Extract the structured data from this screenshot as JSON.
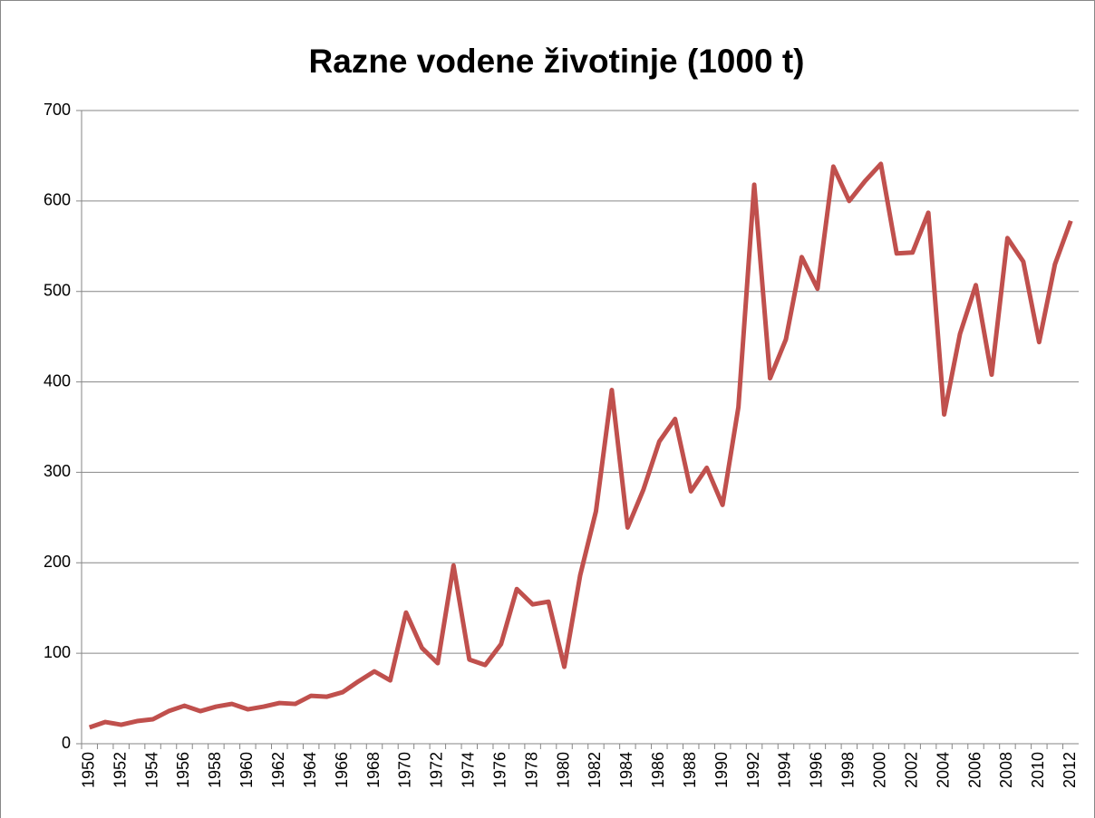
{
  "chart_data": {
    "type": "line",
    "title": "Razne vodene životinje (1000 t)",
    "categories": [
      "1950",
      null,
      "1952",
      null,
      "1954",
      null,
      "1956",
      null,
      "1958",
      null,
      "1960",
      null,
      "1962",
      null,
      "1964",
      null,
      "1966",
      null,
      "1968",
      null,
      "1970",
      null,
      "1972",
      null,
      "1974",
      null,
      "1976",
      null,
      "1978",
      null,
      "1980",
      null,
      "1982",
      null,
      "1984",
      null,
      "1986",
      null,
      "1988",
      null,
      "1990",
      null,
      "1992",
      null,
      "1994",
      null,
      "1996",
      null,
      "1998",
      null,
      "2000",
      null,
      "2002",
      null,
      "2004",
      null,
      "2006",
      null,
      "2008",
      null,
      "2010",
      null,
      "2012"
    ],
    "series": [
      {
        "name": "Razne vodene životinje",
        "color": "#c0504d",
        "values": [
          18,
          24,
          21,
          25,
          27,
          36,
          42,
          36,
          41,
          44,
          38,
          41,
          45,
          44,
          53,
          52,
          57,
          69,
          80,
          70,
          145,
          106,
          89,
          197,
          93,
          87,
          110,
          171,
          154,
          157,
          85,
          186,
          257,
          391,
          239,
          281,
          334,
          359,
          279,
          305,
          264,
          372,
          618,
          404,
          447,
          538,
          503,
          638,
          600,
          622,
          641,
          542,
          543,
          587,
          364,
          453,
          507,
          408,
          559,
          533,
          444,
          530,
          578
        ]
      }
    ],
    "ylim": [
      0,
      700
    ],
    "yticks": [
      0,
      100,
      200,
      300,
      400,
      500,
      600,
      700
    ],
    "grid": true
  }
}
